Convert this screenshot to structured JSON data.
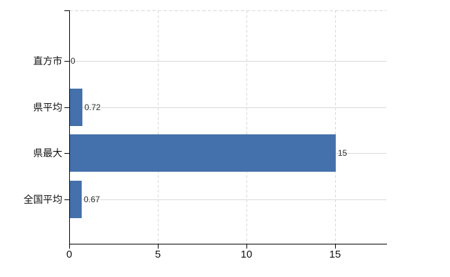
{
  "chart_data": {
    "type": "bar",
    "orientation": "horizontal",
    "title": "",
    "xlabel": "",
    "ylabel": "",
    "categories": [
      "直方市",
      "県平均",
      "県最大",
      "全国平均"
    ],
    "values": [
      0,
      0.72,
      15,
      0.67
    ],
    "value_labels": [
      "0",
      "0.72",
      "15",
      "0.67"
    ],
    "x_ticks": [
      0,
      5,
      10,
      15
    ],
    "x_tick_labels": [
      "0",
      "5",
      "10",
      "15"
    ],
    "xlim": [
      0,
      17.9
    ],
    "legend": "none",
    "grid": {
      "vertical_lines": "dashed at x ticks",
      "horizontal_lines": "solid at category centers",
      "plot_top_border": "dashed"
    },
    "colors": {
      "bar": "#4471ab",
      "axis": "#000000",
      "gridline": "#d8d8d8",
      "category_text": "#111111",
      "tick_text": "#111111",
      "value_text": "#2b2b2b",
      "background": "#ffffff"
    }
  }
}
